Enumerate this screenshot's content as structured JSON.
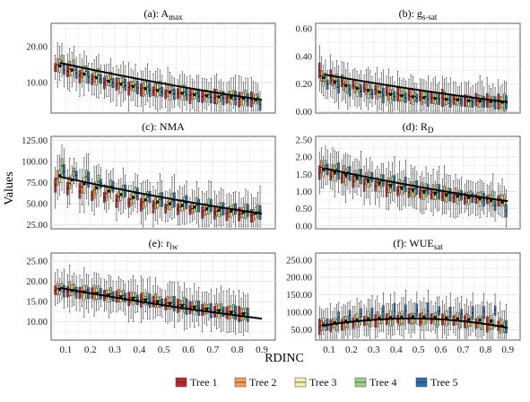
{
  "figure": {
    "ylabel": "Values",
    "xlabel": "RDINC",
    "x_ticks": [
      "0.1",
      "0.2",
      "0.3",
      "0.4",
      "0.5",
      "0.6",
      "0.7",
      "0.8",
      "0.9"
    ],
    "legend": [
      {
        "label": "Tree 1",
        "color": "#c0282e"
      },
      {
        "label": "Tree 2",
        "color": "#f0a060"
      },
      {
        "label": "Tree 3",
        "color": "#f3eeb0"
      },
      {
        "label": "Tree 4",
        "color": "#9fce8f"
      },
      {
        "label": "Tree 5",
        "color": "#2f6fa8"
      }
    ]
  },
  "chart_data": [
    {
      "type": "box",
      "title": "(a): Amax",
      "title_main": "(a): A",
      "title_sub": "max",
      "ylim": [
        1.5,
        26.5
      ],
      "yticks": [
        10,
        20
      ],
      "ytick_labels": [
        "10.00",
        "20.00"
      ],
      "x_groups": [
        0.075,
        0.125,
        0.175,
        0.225,
        0.275,
        0.325,
        0.375,
        0.425,
        0.475,
        0.525,
        0.575,
        0.625,
        0.675,
        0.725,
        0.775,
        0.825,
        0.875
      ],
      "trees": [
        "Tree 1",
        "Tree 2",
        "Tree 3",
        "Tree 4",
        "Tree 5"
      ],
      "trend": {
        "from": [
          0.075,
          15.5
        ],
        "to": [
          0.9,
          5.2
        ]
      },
      "series": [
        {
          "name": "Tree 1",
          "medians": [
            14.2,
            13.1,
            12.0,
            11.0,
            10.0,
            9.2,
            8.6,
            8.0,
            7.5,
            7.0,
            6.8,
            6.4,
            6.1,
            5.8,
            5.6,
            5.4,
            5.2
          ]
        },
        {
          "name": "Tree 2",
          "medians": [
            15.0,
            13.8,
            12.6,
            11.6,
            10.6,
            9.8,
            9.1,
            8.5,
            8.0,
            7.6,
            7.2,
            6.8,
            6.5,
            6.2,
            6.0,
            5.8,
            5.6
          ]
        },
        {
          "name": "Tree 3",
          "medians": [
            14.6,
            13.4,
            12.3,
            11.3,
            10.3,
            9.5,
            8.8,
            8.3,
            7.8,
            7.3,
            7.0,
            6.6,
            6.3,
            6.0,
            5.8,
            5.6,
            5.4
          ]
        },
        {
          "name": "Tree 4",
          "medians": [
            16.0,
            14.5,
            13.2,
            12.1,
            11.0,
            10.1,
            9.4,
            8.8,
            8.3,
            7.8,
            7.4,
            7.0,
            6.7,
            6.4,
            6.2,
            6.0,
            5.8
          ]
        },
        {
          "name": "Tree 5",
          "medians": [
            13.5,
            12.6,
            11.6,
            10.8,
            9.9,
            9.1,
            8.5,
            7.9,
            7.4,
            6.9,
            6.6,
            6.2,
            5.9,
            5.6,
            5.4,
            5.1,
            3.8
          ]
        }
      ]
    },
    {
      "type": "box",
      "title": "(b): gs-sat",
      "title_main": "(b): g",
      "title_sub": "s-sat",
      "ylim": [
        -0.01,
        0.64
      ],
      "yticks": [
        0.0,
        0.2,
        0.4,
        0.6
      ],
      "ytick_labels": [
        "0.00",
        "0.20",
        "0.40",
        "0.60"
      ],
      "x_groups": [
        0.075,
        0.125,
        0.175,
        0.225,
        0.275,
        0.325,
        0.375,
        0.425,
        0.475,
        0.525,
        0.575,
        0.625,
        0.675,
        0.725,
        0.775,
        0.825,
        0.875
      ],
      "trees": [
        "Tree 1",
        "Tree 2",
        "Tree 3",
        "Tree 4",
        "Tree 5"
      ],
      "trend": {
        "from": [
          0.075,
          0.27
        ],
        "to": [
          0.9,
          0.07
        ]
      },
      "series": [
        {
          "name": "Tree 1",
          "medians": [
            0.3,
            0.25,
            0.22,
            0.19,
            0.17,
            0.16,
            0.14,
            0.13,
            0.12,
            0.11,
            0.1,
            0.1,
            0.09,
            0.09,
            0.08,
            0.08,
            0.07
          ]
        },
        {
          "name": "Tree 2",
          "medians": [
            0.26,
            0.23,
            0.2,
            0.18,
            0.16,
            0.15,
            0.13,
            0.12,
            0.11,
            0.1,
            0.1,
            0.09,
            0.09,
            0.08,
            0.08,
            0.07,
            0.07
          ]
        },
        {
          "name": "Tree 3",
          "medians": [
            0.22,
            0.2,
            0.18,
            0.16,
            0.15,
            0.14,
            0.12,
            0.11,
            0.1,
            0.1,
            0.09,
            0.09,
            0.08,
            0.08,
            0.07,
            0.07,
            0.07
          ]
        },
        {
          "name": "Tree 4",
          "medians": [
            0.25,
            0.22,
            0.19,
            0.17,
            0.16,
            0.14,
            0.13,
            0.12,
            0.11,
            0.11,
            0.1,
            0.09,
            0.09,
            0.08,
            0.08,
            0.08,
            0.07
          ]
        },
        {
          "name": "Tree 5",
          "medians": [
            0.2,
            0.18,
            0.16,
            0.15,
            0.13,
            0.12,
            0.11,
            0.1,
            0.1,
            0.09,
            0.09,
            0.08,
            0.08,
            0.07,
            0.07,
            0.07,
            0.06
          ]
        }
      ]
    },
    {
      "type": "box",
      "title": "(c): NMA",
      "title_main": "(c): NMA",
      "title_sub": "",
      "ylim": [
        20,
        130
      ],
      "yticks": [
        25,
        50,
        75,
        100,
        125
      ],
      "ytick_labels": [
        "25.00",
        "50.00",
        "75.00",
        "100.00",
        "125.00"
      ],
      "x_groups": [
        0.075,
        0.125,
        0.175,
        0.225,
        0.275,
        0.325,
        0.375,
        0.425,
        0.475,
        0.525,
        0.575,
        0.625,
        0.675,
        0.725,
        0.775,
        0.825,
        0.875
      ],
      "trees": [
        "Tree 1",
        "Tree 2",
        "Tree 3",
        "Tree 4",
        "Tree 5"
      ],
      "trend": {
        "from": [
          0.075,
          82
        ],
        "to": [
          0.9,
          38
        ]
      },
      "series": [
        {
          "name": "Tree 1",
          "medians": [
            72,
            68,
            64,
            60,
            57,
            54,
            51,
            49,
            47,
            45,
            43,
            42,
            40,
            39,
            38,
            37,
            36
          ]
        },
        {
          "name": "Tree 2",
          "medians": [
            80,
            74,
            70,
            66,
            62,
            58,
            55,
            52,
            50,
            48,
            46,
            44,
            42,
            41,
            40,
            38,
            37
          ]
        },
        {
          "name": "Tree 3",
          "medians": [
            82,
            78,
            73,
            68,
            64,
            60,
            57,
            54,
            52,
            50,
            48,
            46,
            44,
            42,
            41,
            40,
            39
          ]
        },
        {
          "name": "Tree 4",
          "medians": [
            95,
            88,
            82,
            76,
            71,
            66,
            62,
            58,
            55,
            53,
            51,
            48,
            46,
            44,
            43,
            41,
            40
          ]
        },
        {
          "name": "Tree 5",
          "medians": [
            88,
            84,
            79,
            74,
            70,
            66,
            62,
            59,
            56,
            54,
            51,
            49,
            47,
            45,
            44,
            42,
            41
          ]
        }
      ]
    },
    {
      "type": "box",
      "title": "(d): RD",
      "title_main": "(d): R",
      "title_sub": "D",
      "ylim": [
        -0.08,
        2.6
      ],
      "yticks": [
        0.0,
        0.5,
        1.0,
        1.5,
        2.0,
        2.5
      ],
      "ytick_labels": [
        "0.00",
        "0.50",
        "1.00",
        "1.50",
        "2.00",
        "2.50"
      ],
      "x_groups": [
        0.075,
        0.125,
        0.175,
        0.225,
        0.275,
        0.325,
        0.375,
        0.425,
        0.475,
        0.525,
        0.575,
        0.625,
        0.675,
        0.725,
        0.775,
        0.825,
        0.875
      ],
      "trees": [
        "Tree 1",
        "Tree 2",
        "Tree 3",
        "Tree 4",
        "Tree 5"
      ],
      "trend": {
        "from": [
          0.075,
          1.68
        ],
        "to": [
          0.9,
          0.72
        ]
      },
      "series": [
        {
          "name": "Tree 1",
          "medians": [
            1.55,
            1.45,
            1.38,
            1.3,
            1.22,
            1.15,
            1.08,
            1.02,
            0.98,
            0.94,
            0.9,
            0.86,
            0.82,
            0.8,
            0.78,
            0.76,
            0.74
          ]
        },
        {
          "name": "Tree 2",
          "medians": [
            1.7,
            1.62,
            1.52,
            1.45,
            1.36,
            1.28,
            1.2,
            1.14,
            1.08,
            1.02,
            0.98,
            0.94,
            0.9,
            0.86,
            0.82,
            0.8,
            0.78
          ]
        },
        {
          "name": "Tree 3",
          "medians": [
            1.6,
            1.5,
            1.42,
            1.34,
            1.26,
            1.18,
            1.11,
            1.05,
            0.99,
            0.94,
            0.9,
            0.86,
            0.83,
            0.8,
            0.77,
            0.74,
            0.72
          ]
        },
        {
          "name": "Tree 4",
          "medians": [
            1.75,
            1.65,
            1.56,
            1.47,
            1.38,
            1.3,
            1.22,
            1.15,
            1.09,
            1.03,
            0.98,
            0.94,
            0.9,
            0.86,
            0.82,
            0.79,
            0.76
          ]
        },
        {
          "name": "Tree 5",
          "medians": [
            1.65,
            1.6,
            1.52,
            1.46,
            1.4,
            1.32,
            1.26,
            1.18,
            1.12,
            1.06,
            1.0,
            0.94,
            0.88,
            0.82,
            0.76,
            0.6,
            0.45
          ]
        }
      ]
    },
    {
      "type": "box",
      "title": "(e): rlw",
      "title_main": "(e): r",
      "title_sub": "lw",
      "ylim": [
        5.5,
        27
      ],
      "yticks": [
        10,
        15,
        20,
        25
      ],
      "ytick_labels": [
        "10.00",
        "15.00",
        "20.00",
        "25.00"
      ],
      "x_groups": [
        0.075,
        0.125,
        0.175,
        0.225,
        0.275,
        0.325,
        0.375,
        0.425,
        0.475,
        0.525,
        0.575,
        0.625,
        0.675,
        0.725,
        0.775,
        0.825
      ],
      "trees": [
        "Tree 1",
        "Tree 2",
        "Tree 3",
        "Tree 4",
        "Tree 5"
      ],
      "trend": {
        "from": [
          0.075,
          18.4
        ],
        "to": [
          0.9,
          10.8
        ]
      },
      "series": [
        {
          "name": "Tree 1",
          "medians": [
            17.8,
            17.5,
            17.2,
            16.9,
            16.5,
            16.1,
            15.7,
            15.3,
            14.9,
            14.4,
            14.0,
            13.5,
            13.1,
            12.6,
            12.2,
            11.8
          ]
        },
        {
          "name": "Tree 2",
          "medians": [
            18.2,
            18.0,
            17.6,
            17.2,
            16.8,
            16.4,
            16.0,
            15.6,
            15.1,
            14.7,
            14.2,
            13.8,
            13.3,
            12.9,
            12.5,
            12.1
          ]
        },
        {
          "name": "Tree 3",
          "medians": [
            18.0,
            17.7,
            17.4,
            17.0,
            16.6,
            16.2,
            15.8,
            15.4,
            15.0,
            14.5,
            14.1,
            13.6,
            13.2,
            12.8,
            12.4,
            12.0
          ]
        },
        {
          "name": "Tree 4",
          "medians": [
            18.5,
            18.1,
            17.7,
            17.3,
            16.9,
            16.5,
            16.1,
            15.7,
            15.2,
            14.8,
            14.3,
            13.9,
            13.4,
            13.0,
            12.6,
            12.2
          ]
        },
        {
          "name": "Tree 5",
          "medians": [
            17.6,
            17.3,
            17.0,
            16.7,
            16.3,
            15.9,
            15.5,
            15.1,
            14.7,
            14.3,
            13.8,
            13.4,
            13.0,
            12.6,
            12.2,
            11.9
          ]
        }
      ]
    },
    {
      "type": "box",
      "title": "(f): WUEsat",
      "title_main": "(f): WUE",
      "title_sub": "sat",
      "ylim": [
        20,
        270
      ],
      "yticks": [
        50,
        100,
        150,
        200,
        250
      ],
      "ytick_labels": [
        "50.00",
        "100.00",
        "150.00",
        "200.00",
        "250.00"
      ],
      "x_groups": [
        0.075,
        0.125,
        0.175,
        0.225,
        0.275,
        0.325,
        0.375,
        0.425,
        0.475,
        0.525,
        0.575,
        0.625,
        0.675,
        0.725,
        0.775,
        0.825,
        0.875
      ],
      "trees": [
        "Tree 1",
        "Tree 2",
        "Tree 3",
        "Tree 4",
        "Tree 5"
      ],
      "trend": {
        "from": [
          0.075,
          62
        ],
        "to": [
          0.9,
          55
        ],
        "peak": [
          0.5,
          82
        ]
      },
      "series": [
        {
          "name": "Tree 1",
          "medians": [
            58,
            62,
            66,
            70,
            73,
            76,
            78,
            79,
            80,
            80,
            79,
            78,
            76,
            73,
            70,
            66,
            60
          ]
        },
        {
          "name": "Tree 2",
          "medians": [
            62,
            66,
            70,
            74,
            77,
            79,
            81,
            82,
            83,
            83,
            82,
            80,
            78,
            75,
            72,
            68,
            62
          ]
        },
        {
          "name": "Tree 3",
          "medians": [
            70,
            73,
            75,
            78,
            80,
            82,
            83,
            84,
            85,
            85,
            84,
            82,
            80,
            77,
            74,
            70,
            64
          ]
        },
        {
          "name": "Tree 4",
          "medians": [
            60,
            64,
            68,
            72,
            75,
            77,
            79,
            80,
            81,
            81,
            80,
            78,
            76,
            73,
            70,
            66,
            58
          ]
        },
        {
          "name": "Tree 5",
          "medians": [
            66,
            85,
            92,
            96,
            100,
            102,
            104,
            104,
            105,
            104,
            103,
            100,
            96,
            98,
            102,
            106,
            55
          ]
        }
      ]
    }
  ]
}
